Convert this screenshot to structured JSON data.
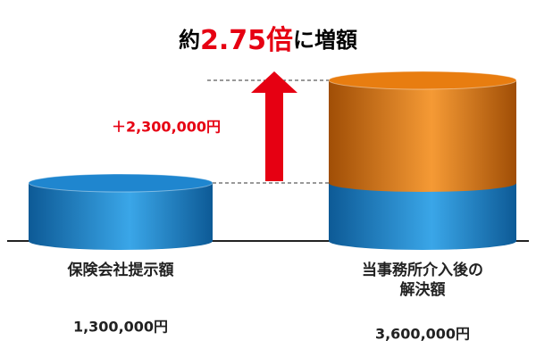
{
  "chart_data": {
    "type": "cylinder",
    "title_parts": [
      "約",
      "2.75倍",
      "に増額"
    ],
    "title_highlight_color": "#e60012",
    "categories": [
      "保険会社提示額",
      "当事務所介入後の解決額"
    ],
    "series": [
      {
        "color": "#1f86cf",
        "values": [
          1300000,
          1300000
        ]
      },
      {
        "color": "#e87d10",
        "values": [
          null,
          2300000
        ],
        "value_labels": [
          null,
          "＋2,300,000円"
        ],
        "label_color": "#e60012"
      }
    ],
    "totals": {
      "values": [
        1300000,
        3600000
      ],
      "value_labels": [
        "1,300,000円",
        "3,600,000円"
      ]
    }
  }
}
